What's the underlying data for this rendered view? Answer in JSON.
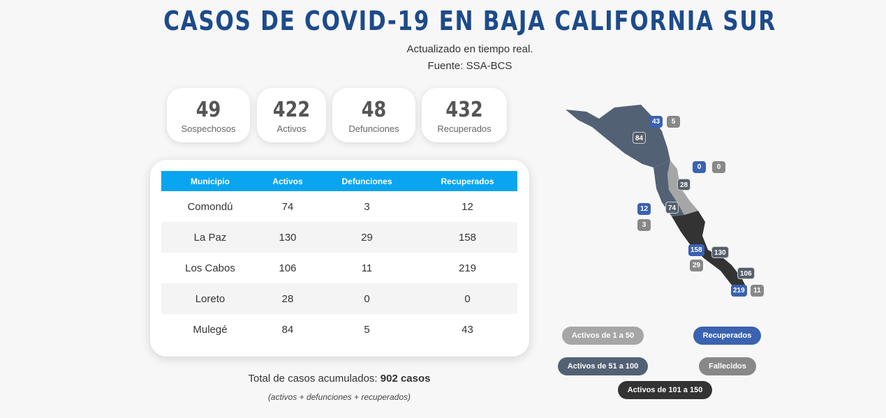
{
  "header": {
    "title": "CASOS DE COVID-19 EN BAJA CALIFORNIA SUR",
    "subtitle_1": "Actualizado en tiempo real.",
    "subtitle_2": "Fuente: SSA-BCS"
  },
  "stats": [
    {
      "value": "49",
      "label": "Sospechosos"
    },
    {
      "value": "422",
      "label": "Activos"
    },
    {
      "value": "48",
      "label": "Defunciones"
    },
    {
      "value": "432",
      "label": "Recuperados"
    }
  ],
  "table": {
    "headers": [
      "Municipio",
      "Activos",
      "Defunciones",
      "Recuperados"
    ],
    "rows": [
      [
        "Comondú",
        "74",
        "3",
        "12"
      ],
      [
        "La Paz",
        "130",
        "29",
        "158"
      ],
      [
        "Los Cabos",
        "106",
        "11",
        "219"
      ],
      [
        "Loreto",
        "28",
        "0",
        "0"
      ],
      [
        "Mulegé",
        "84",
        "5",
        "43"
      ]
    ]
  },
  "total": {
    "label": "Total de casos acumulados:",
    "value": "902 casos",
    "note": "(activos + defunciones + recuperados)"
  },
  "map": {
    "badges": {
      "mulege_recuperados": "43",
      "mulege_defunciones": "5",
      "mulege_activos": "84",
      "loreto_recuperados": "0",
      "loreto_defunciones": "0",
      "loreto_activos": "28",
      "comondu_recuperados": "12",
      "comondu_activos": "74",
      "comondu_defunciones": "3",
      "lapaz_recuperados": "158",
      "lapaz_activos": "130",
      "lapaz_defunciones": "29",
      "loscabos_activos": "106",
      "loscabos_recuperados": "219",
      "loscabos_defunciones": "11"
    },
    "colors": {
      "range_1_50": "#a6a6a6",
      "range_51_100": "#536175",
      "range_101_150": "#333333",
      "recuperados": "#3a62b0",
      "fallecidos": "#888888"
    }
  },
  "legend": {
    "range_1_50": "Activos de 1 a 50",
    "recuperados": "Recuperados",
    "range_51_100": "Activos de 51 a 100",
    "fallecidos": "Fallecidos",
    "range_101_150": "Activos de 101 a 150"
  }
}
